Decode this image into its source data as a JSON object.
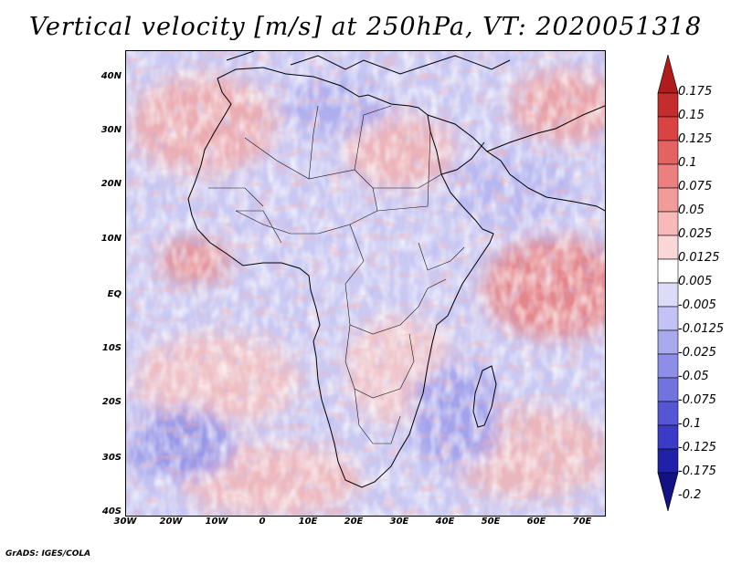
{
  "title": "Vertical velocity [m/s] at 250hPa, VT: 2020051318",
  "credit": "GrADS: IGES/COLA",
  "map": {
    "region": "Africa",
    "variable": "vertical velocity",
    "level": "250hPa",
    "lat_labels": [
      "40N",
      "30N",
      "20N",
      "10N",
      "EQ",
      "10S",
      "20S",
      "30S",
      "40S"
    ],
    "lon_labels": [
      "30W",
      "20W",
      "10W",
      "0",
      "10E",
      "20E",
      "30E",
      "40E",
      "50E",
      "60E",
      "70E"
    ]
  },
  "colorbar": {
    "levels": [
      "0.175",
      "0.15",
      "0.125",
      "0.1",
      "0.075",
      "0.05",
      "0.025",
      "0.0125",
      "0.005",
      "-0.005",
      "-0.0125",
      "-0.025",
      "-0.05",
      "-0.075",
      "-0.1",
      "-0.125",
      "-0.175",
      "-0.2"
    ],
    "colors": [
      "#b01c1c",
      "#c42d2d",
      "#d84444",
      "#e36262",
      "#ec7f7f",
      "#f29b9b",
      "#f7b9b9",
      "#fbd6d6",
      "#ffffff",
      "#dcdcf8",
      "#c2c2f4",
      "#a9a9ee",
      "#8e8ee8",
      "#7373e0",
      "#5656d4",
      "#3b3bc6",
      "#2020a8",
      "#121285"
    ]
  }
}
